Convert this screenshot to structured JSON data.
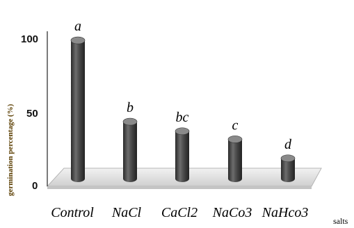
{
  "chart_data": {
    "type": "bar",
    "categories": [
      "Control",
      "NaCl",
      "CaCl2",
      "NaCo3",
      "NaHco3"
    ],
    "values": [
      102,
      42,
      35,
      29,
      15
    ],
    "annotations": [
      "a",
      "b",
      "bc",
      "c",
      "d"
    ],
    "xlabel": "salts",
    "ylabel": "germination percentage (%)",
    "ylim": [
      0,
      100
    ],
    "yticks": [
      "0",
      "50",
      "100"
    ],
    "grid": false,
    "bar_style": "3d-cylinder",
    "colors": {
      "bar": "#3d3d3d",
      "bar_light": "#8a8a8a",
      "floor": "#d9d9d9"
    }
  }
}
